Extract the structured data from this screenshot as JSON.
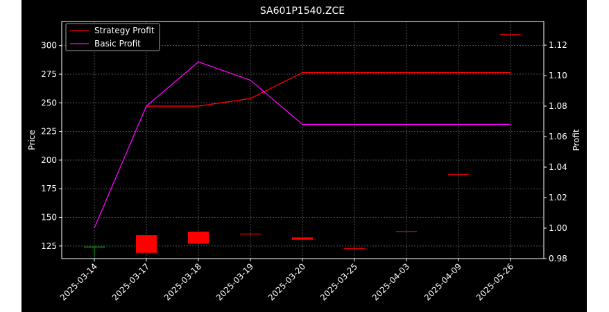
{
  "chart_data": {
    "type": "candlestick",
    "title": "SA601P1540.ZCE",
    "xlabel": "",
    "ylabel": "Price",
    "y2label": "Profit",
    "categories": [
      "2025-03-14",
      "2025-03-17",
      "2025-03-18",
      "2025-03-19",
      "2025-03-20",
      "2025-03-25",
      "2025-04-03",
      "2025-04-09",
      "2025-05-26"
    ],
    "ylim": [
      114,
      321
    ],
    "yticks": [
      125,
      150,
      175,
      200,
      225,
      250,
      275,
      300
    ],
    "y2lim": [
      0.98,
      1.1355
    ],
    "y2ticks": [
      "0.98",
      "1.00",
      "1.02",
      "1.04",
      "1.06",
      "1.08",
      "1.10",
      "1.12"
    ],
    "grid": true,
    "legend_position": "top-left",
    "colors": {
      "background": "#000000",
      "up": "#00aa00",
      "down": "#ff0000",
      "strategy": "#ff0000",
      "basic": "#ff00ff",
      "axes": "#ffffff",
      "grid": "#666666"
    },
    "candles": [
      {
        "open": 124.5,
        "close": 124.5,
        "high": 124.5,
        "low": 115.5,
        "color": "up"
      },
      {
        "open": 134.5,
        "close": 119,
        "high": 134.5,
        "low": 119,
        "color": "down"
      },
      {
        "open": 137.5,
        "close": 127,
        "high": 137.5,
        "low": 127,
        "color": "down"
      },
      {
        "open": 135.8,
        "close": 135.8,
        "high": 135.8,
        "low": 135.8,
        "color": "down"
      },
      {
        "open": 132.5,
        "close": 130.5,
        "high": 132.5,
        "low": 130.5,
        "color": "down"
      },
      {
        "open": 123,
        "close": 123,
        "high": 123,
        "low": 123,
        "color": "down"
      },
      {
        "open": 138,
        "close": 138,
        "high": 138,
        "low": 138,
        "color": "down"
      },
      {
        "open": 188,
        "close": 188,
        "high": 188,
        "low": 188,
        "color": "down"
      },
      {
        "open": 310,
        "close": 310,
        "high": 310,
        "low": 310,
        "color": "down"
      }
    ],
    "series": [
      {
        "name": "Strategy Profit",
        "color": "#ff0000",
        "values": [
          null,
          1.08,
          1.08,
          1.085,
          1.102,
          1.102,
          1.102,
          1.102,
          1.102
        ]
      },
      {
        "name": "Basic Profit",
        "color": "#ff00ff",
        "values": [
          1.0,
          1.08,
          1.109,
          1.097,
          1.068,
          1.068,
          1.068,
          1.068,
          1.068
        ]
      }
    ]
  }
}
